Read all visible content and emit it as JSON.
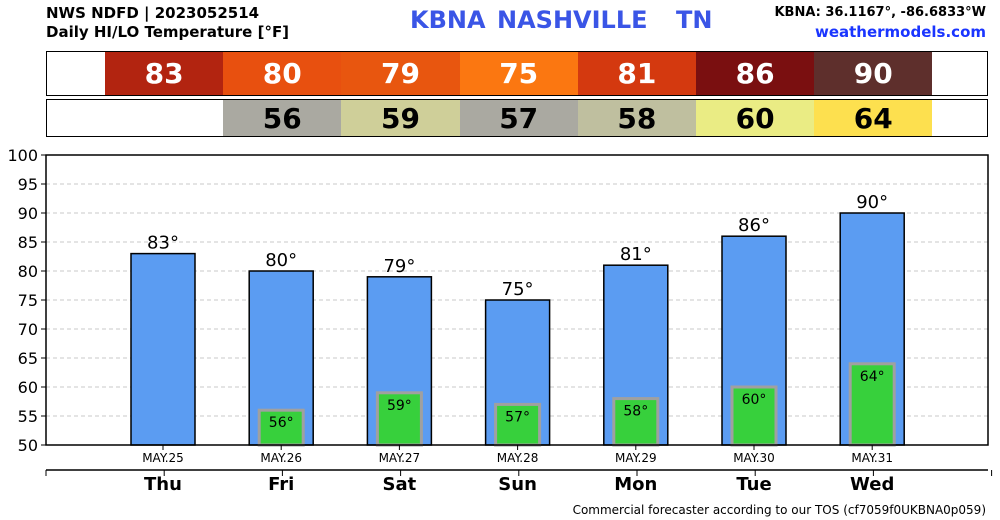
{
  "header": {
    "line1": "NWS NDFD | 2023052514",
    "line2": "Daily HI/LO Temperature [°F]",
    "station_code": "KBNA",
    "station_city": "NASHVILLE",
    "station_state": "TN",
    "coords": "KBNA: 36.1167°, -86.6833°W",
    "site": "weathermodels.com"
  },
  "footer": {
    "disclaimer": "Commercial forecaster according to our TOS (cf7059f0UKBNA0p059)"
  },
  "colors": {
    "hi_bar": "#5b9cf2",
    "lo_bar": "#37d03c",
    "lo_bar_border": "#a0a0a0",
    "hi_strip": [
      "#b22410",
      "#e8500f",
      "#e8560f",
      "#fb7711",
      "#d4390f",
      "#7a0f10",
      "#5e2f2c"
    ],
    "lo_strip": [
      "#aaa9a1",
      "#cfcf99",
      "#aaa9a1",
      "#bfbf9f",
      "#eaec84",
      "#fde04f"
    ]
  },
  "chart_data": {
    "type": "bar",
    "title": "Daily HI/LO Temperature [°F]",
    "categories": [
      "Thu",
      "Fri",
      "Sat",
      "Sun",
      "Mon",
      "Tue",
      "Wed"
    ],
    "dates": [
      "MAY.25",
      "MAY.26",
      "MAY.27",
      "MAY.28",
      "MAY.29",
      "MAY.30",
      "MAY.31"
    ],
    "series": [
      {
        "name": "HI",
        "values": [
          83,
          80,
          79,
          75,
          81,
          86,
          90
        ],
        "labels": [
          "83°",
          "80°",
          "79°",
          "75°",
          "81°",
          "86°",
          "90°"
        ]
      },
      {
        "name": "LO",
        "values": [
          null,
          56,
          59,
          57,
          58,
          60,
          64
        ],
        "labels": [
          "",
          "56°",
          "59°",
          "57°",
          "58°",
          "60°",
          "64°"
        ]
      }
    ],
    "hi_strip_labels": [
      "83",
      "80",
      "79",
      "75",
      "81",
      "86",
      "90"
    ],
    "lo_strip_labels": [
      "",
      "56",
      "59",
      "57",
      "58",
      "60",
      "64"
    ],
    "ylim": [
      50,
      100
    ],
    "yticks": [
      50,
      55,
      60,
      65,
      70,
      75,
      80,
      85,
      90,
      95,
      100
    ],
    "grid": "dashed horizontal"
  }
}
